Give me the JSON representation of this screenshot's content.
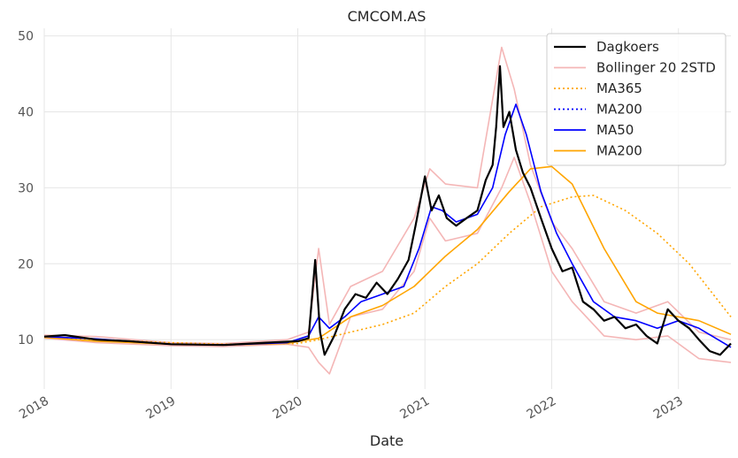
{
  "chart_data": {
    "type": "line",
    "title": "CMCOM.AS",
    "xlabel": "Date",
    "ylabel": "",
    "xlim": [
      "2018-01-01",
      "2023-06-01"
    ],
    "ylim": [
      3.5,
      51
    ],
    "x_ticks": [
      "2018",
      "2019",
      "2020",
      "2021",
      "2022",
      "2023"
    ],
    "y_ticks": [
      10,
      20,
      30,
      40,
      50
    ],
    "grid": true,
    "legend_position": "top-right",
    "series": [
      {
        "name": "Dagkoers",
        "color": "#000000",
        "style": "solid",
        "x": [
          "2018-01-01",
          "2018-03-01",
          "2018-06-01",
          "2018-09-01",
          "2019-01-01",
          "2019-06-01",
          "2019-10-01",
          "2020-01-01",
          "2020-02-01",
          "2020-02-20",
          "2020-03-05",
          "2020-03-18",
          "2020-04-15",
          "2020-05-15",
          "2020-06-15",
          "2020-07-15",
          "2020-08-15",
          "2020-09-15",
          "2020-10-15",
          "2020-11-15",
          "2020-12-05",
          "2021-01-01",
          "2021-01-20",
          "2021-02-10",
          "2021-03-05",
          "2021-04-01",
          "2021-05-01",
          "2021-06-01",
          "2021-06-25",
          "2021-07-15",
          "2021-07-25",
          "2021-08-05",
          "2021-08-15",
          "2021-09-01",
          "2021-09-20",
          "2021-10-10",
          "2021-11-01",
          "2021-12-01",
          "2022-01-01",
          "2022-02-01",
          "2022-03-01",
          "2022-04-01",
          "2022-05-01",
          "2022-06-01",
          "2022-07-01",
          "2022-08-01",
          "2022-09-01",
          "2022-10-01",
          "2022-11-01",
          "2022-12-01",
          "2023-01-01",
          "2023-02-01",
          "2023-03-01",
          "2023-04-01",
          "2023-05-01",
          "2023-06-01"
        ],
        "y": [
          10.4,
          10.6,
          10.0,
          9.8,
          9.4,
          9.3,
          9.6,
          9.8,
          10.2,
          20.5,
          11.0,
          8.0,
          10.5,
          14.0,
          16.0,
          15.5,
          17.5,
          16.0,
          18.0,
          20.5,
          25.0,
          31.5,
          27.0,
          29.0,
          26.0,
          25.0,
          26.0,
          27.0,
          31.0,
          33.0,
          38.0,
          46.0,
          38.0,
          40.0,
          35.0,
          32.0,
          30.0,
          26.0,
          22.0,
          19.0,
          19.5,
          15.0,
          14.0,
          12.5,
          13.0,
          11.5,
          12.0,
          10.5,
          9.5,
          14.0,
          12.5,
          11.5,
          10.0,
          8.5,
          8.0,
          9.5
        ]
      },
      {
        "name": "Bollinger 20 2STD",
        "color": "#f4b6b6",
        "style": "solid",
        "x": [
          "2018-01-01",
          "2018-06-01",
          "2019-01-01",
          "2019-06-01",
          "2019-12-01",
          "2020-02-01",
          "2020-03-01",
          "2020-04-01",
          "2020-06-01",
          "2020-09-01",
          "2020-12-01",
          "2021-01-15",
          "2021-03-01",
          "2021-06-01",
          "2021-08-10",
          "2021-09-15",
          "2021-11-01",
          "2022-01-01",
          "2022-03-01",
          "2022-06-01",
          "2022-09-01",
          "2022-12-01",
          "2023-03-01",
          "2023-06-01"
        ],
        "y": [
          10.6,
          10.4,
          9.6,
          9.5,
          10.0,
          11.0,
          22.0,
          12.0,
          17.0,
          19.0,
          26.0,
          32.5,
          30.5,
          30.0,
          48.5,
          43.0,
          33.0,
          25.5,
          22.0,
          15.0,
          13.5,
          15.0,
          11.0,
          10.0
        ],
        "y2": [
          10.2,
          9.6,
          9.2,
          9.1,
          9.4,
          9.0,
          7.0,
          5.5,
          13.0,
          14.0,
          19.0,
          26.0,
          23.0,
          24.0,
          30.0,
          34.0,
          28.0,
          19.0,
          15.0,
          10.5,
          10.0,
          10.5,
          7.5,
          7.0
        ]
      },
      {
        "name": "MA365",
        "color": "#ffa500",
        "style": "dotted",
        "x": [
          "2018-01-01",
          "2018-06-01",
          "2019-01-01",
          "2019-06-01",
          "2019-12-31",
          "2020-03-01",
          "2020-06-01",
          "2020-09-01",
          "2020-12-01",
          "2021-03-01",
          "2021-06-01",
          "2021-09-01",
          "2021-12-01",
          "2022-03-01",
          "2022-05-01",
          "2022-08-01",
          "2022-11-01",
          "2023-02-01",
          "2023-06-01"
        ],
        "y": [
          10.4,
          10.0,
          9.6,
          9.4,
          9.5,
          10.0,
          11.0,
          12.0,
          13.5,
          17.0,
          20.0,
          24.0,
          27.5,
          28.8,
          29.0,
          27.0,
          24.0,
          20.0,
          13.0
        ]
      },
      {
        "name": "MA200",
        "color": "#0000ff",
        "style": "dotted",
        "x": [],
        "y": []
      },
      {
        "name": "MA50",
        "color": "#0000ff",
        "style": "solid",
        "x": [
          "2018-01-01",
          "2018-06-01",
          "2019-01-01",
          "2019-06-01",
          "2019-12-01",
          "2020-02-01",
          "2020-03-01",
          "2020-04-01",
          "2020-05-15",
          "2020-07-01",
          "2020-09-01",
          "2020-11-01",
          "2020-12-15",
          "2021-01-20",
          "2021-02-20",
          "2021-04-01",
          "2021-06-01",
          "2021-07-15",
          "2021-08-20",
          "2021-09-20",
          "2021-10-20",
          "2021-12-01",
          "2022-01-15",
          "2022-03-01",
          "2022-05-01",
          "2022-07-01",
          "2022-09-01",
          "2022-11-01",
          "2023-01-01",
          "2023-03-01",
          "2023-06-01"
        ],
        "y": [
          10.4,
          10.1,
          9.4,
          9.3,
          9.6,
          10.5,
          13.0,
          11.5,
          13.0,
          15.0,
          16.0,
          17.0,
          22.0,
          27.5,
          27.0,
          25.5,
          26.5,
          30.0,
          37.0,
          41.0,
          37.0,
          29.5,
          24.0,
          20.0,
          15.0,
          13.0,
          12.5,
          11.5,
          12.5,
          11.5,
          9.0
        ]
      },
      {
        "name": "MA200",
        "color": "#ffa500",
        "style": "solid",
        "x": [
          "2018-01-01",
          "2018-06-01",
          "2019-01-01",
          "2019-06-01",
          "2019-12-01",
          "2020-03-01",
          "2020-06-01",
          "2020-09-01",
          "2020-12-01",
          "2021-03-01",
          "2021-06-01",
          "2021-09-01",
          "2021-11-01",
          "2022-01-01",
          "2022-03-01",
          "2022-06-01",
          "2022-09-01",
          "2022-11-01",
          "2023-01-01",
          "2023-03-01",
          "2023-06-01"
        ],
        "y": [
          10.3,
          9.8,
          9.4,
          9.3,
          9.5,
          10.2,
          13.0,
          14.5,
          17.0,
          21.0,
          24.5,
          29.5,
          32.5,
          32.8,
          30.5,
          22.0,
          15.0,
          13.5,
          13.0,
          12.5,
          10.7
        ]
      }
    ]
  }
}
